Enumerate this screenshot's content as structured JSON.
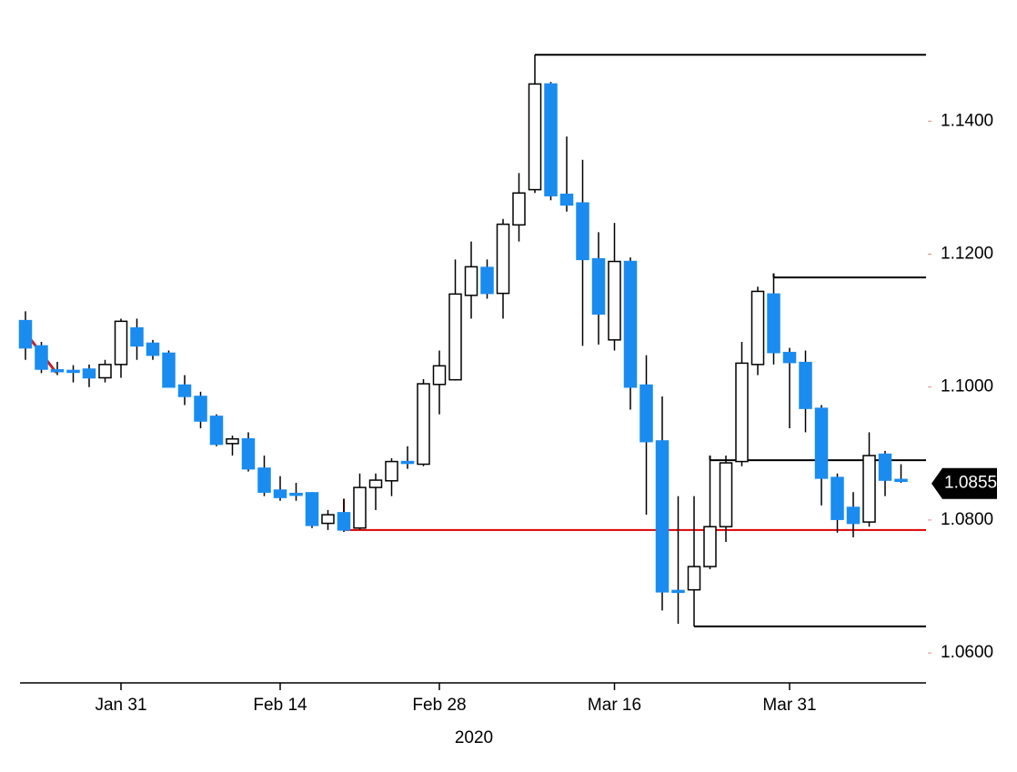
{
  "chart_data": {
    "type": "candlestick",
    "x_label": "2020",
    "categories": [
      null,
      null,
      null,
      null,
      null,
      null,
      "Jan 31",
      null,
      null,
      null,
      null,
      null,
      null,
      null,
      null,
      null,
      "Feb 14",
      null,
      null,
      null,
      null,
      null,
      null,
      null,
      null,
      null,
      "Feb 28",
      null,
      null,
      null,
      null,
      null,
      null,
      null,
      null,
      null,
      null,
      "Mar 16",
      null,
      null,
      null,
      null,
      null,
      null,
      null,
      null,
      null,
      null,
      "Mar 31",
      null,
      null,
      null,
      null,
      null,
      null,
      null
    ],
    "open": [
      1.11,
      1.1062,
      1.1026,
      1.1025,
      1.1027,
      1.1014,
      1.1034,
      1.1089,
      1.1066,
      1.1051,
      1.1003,
      1.0986,
      1.0956,
      1.0915,
      1.0922,
      1.0878,
      1.0845,
      1.084,
      1.0841,
      1.0795,
      1.0811,
      1.0788,
      1.0849,
      1.0859,
      1.0888,
      1.0884,
      1.1004,
      1.1011,
      1.1138,
      1.118,
      1.1141,
      1.1244,
      1.1297,
      1.1456,
      1.129,
      1.1277,
      1.1193,
      1.1071,
      1.1189,
      1.1003,
      1.0919,
      1.0694,
      1.0695,
      1.073,
      1.079,
      1.0888,
      1.1034,
      1.114,
      1.1052,
      1.1037,
      1.0968,
      1.0864,
      1.0819,
      1.0797,
      1.0899,
      1.0861
    ],
    "high": [
      1.1114,
      1.1068,
      1.1038,
      1.1033,
      1.1034,
      1.1041,
      1.1103,
      1.1103,
      1.1071,
      1.1055,
      1.1018,
      1.0993,
      1.0959,
      1.0927,
      1.0932,
      1.0897,
      1.0866,
      1.0856,
      1.0842,
      1.0815,
      1.0832,
      1.087,
      1.087,
      1.0893,
      1.0911,
      1.1012,
      1.1055,
      1.1192,
      1.1219,
      1.1192,
      1.1253,
      1.1322,
      1.15,
      1.1459,
      1.1377,
      1.1342,
      1.1233,
      1.1247,
      1.1195,
      1.1048,
      1.0986,
      1.0836,
      1.0836,
      1.0897,
      1.0897,
      1.1068,
      1.1151,
      1.1171,
      1.1059,
      1.1055,
      1.0973,
      1.087,
      1.0842,
      1.0932,
      1.0904,
      1.0884
    ],
    "low": [
      1.1041,
      1.1021,
      1.1018,
      1.1007,
      1.1,
      1.1007,
      1.1014,
      1.1041,
      1.1041,
      1.1,
      1.0973,
      1.0938,
      1.0911,
      1.0897,
      1.0873,
      1.0836,
      1.0829,
      1.0829,
      1.0788,
      1.0785,
      1.0782,
      1.0785,
      1.0815,
      1.0836,
      1.0877,
      1.0881,
      1.0959,
      1.101,
      1.1103,
      1.1133,
      1.1103,
      1.1219,
      1.1292,
      1.1281,
      1.1264,
      1.1062,
      1.1064,
      1.1055,
      1.0966,
      1.0808,
      1.0664,
      1.0644,
      1.064,
      1.0726,
      1.0767,
      1.0881,
      1.1018,
      1.1034,
      1.0938,
      1.0932,
      1.0822,
      1.0781,
      1.0774,
      1.079,
      1.0836,
      1.0856
    ],
    "close": [
      1.1059,
      1.1027,
      1.1025,
      1.1024,
      1.1014,
      1.1034,
      1.1099,
      1.1062,
      1.1048,
      1.1,
      1.0986,
      1.0949,
      1.0914,
      1.0922,
      1.0877,
      1.0842,
      1.0834,
      1.0839,
      1.0792,
      1.0808,
      1.0785,
      1.0849,
      1.086,
      1.0888,
      1.0886,
      1.1005,
      1.1032,
      1.114,
      1.1181,
      1.1141,
      1.1245,
      1.1292,
      1.1456,
      1.1288,
      1.1274,
      1.1192,
      1.111,
      1.1189,
      1.1,
      1.0918,
      1.0692,
      1.0692,
      1.073,
      1.079,
      1.0886,
      1.1036,
      1.1144,
      1.1052,
      1.1037,
      1.0968,
      1.0863,
      1.0801,
      1.0795,
      1.0897,
      1.086,
      1.086
    ],
    "up_color": "#ffffff",
    "down_color": "#1a8cf0",
    "ylim": [
      1.0555,
      1.1555
    ],
    "yticks": [
      {
        "value": 1.06,
        "label": "1.0600"
      },
      {
        "value": 1.08,
        "label": "1.0800"
      },
      {
        "value": 1.1,
        "label": "1.1000"
      },
      {
        "value": 1.12,
        "label": "1.1200"
      },
      {
        "value": 1.14,
        "label": "1.1400"
      }
    ],
    "levels": [
      {
        "value": 1.15,
        "from": 32,
        "color": "#000000"
      },
      {
        "value": 1.1165,
        "from": 47,
        "color": "#000000"
      },
      {
        "value": 1.089,
        "from": 43,
        "color": "#000000"
      },
      {
        "value": 1.0785,
        "from": 20,
        "color": "#e00000"
      },
      {
        "value": 1.064,
        "from": 42,
        "color": "#000000"
      }
    ],
    "last_price": {
      "value": 1.0855,
      "label": "1.0855"
    }
  }
}
